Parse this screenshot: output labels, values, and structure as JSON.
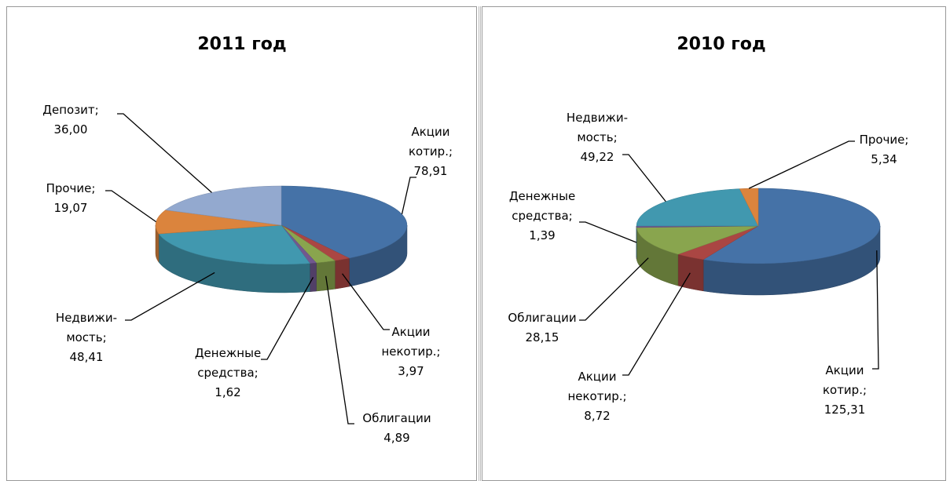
{
  "chart_data": [
    {
      "type": "pie3d",
      "title": "2011 год",
      "categories": [
        "Акции котир.;",
        "Акции некотир.;",
        "Облигации",
        "Денежные средства;",
        "Недвижи- мость;",
        "Прочие;",
        "Депозит;"
      ],
      "values": [
        78.91,
        3.97,
        4.89,
        1.62,
        48.41,
        19.07,
        36.0
      ],
      "value_labels": [
        "78,91",
        "3,97",
        "4,89",
        "1,62",
        "48,41",
        "19,07",
        "36,00"
      ],
      "colors": [
        "#4572a7",
        "#aa4643",
        "#89a54e",
        "#71588f",
        "#4198af",
        "#db843d",
        "#93a9cf"
      ]
    },
    {
      "type": "pie3d",
      "title": "2010 год",
      "categories": [
        "Акции котир.;",
        "Акции некотир.;",
        "Облигации",
        "Денежные средства;",
        "Недвижи- мость;",
        "Прочие;"
      ],
      "values": [
        125.31,
        8.72,
        28.15,
        1.39,
        49.22,
        5.34
      ],
      "value_labels": [
        "125,31",
        "8,72",
        "28,15",
        "1,39",
        "49,22",
        "5,34"
      ],
      "colors": [
        "#4572a7",
        "#aa4643",
        "#89a54e",
        "#71588f",
        "#4198af",
        "#db843d"
      ]
    }
  ]
}
